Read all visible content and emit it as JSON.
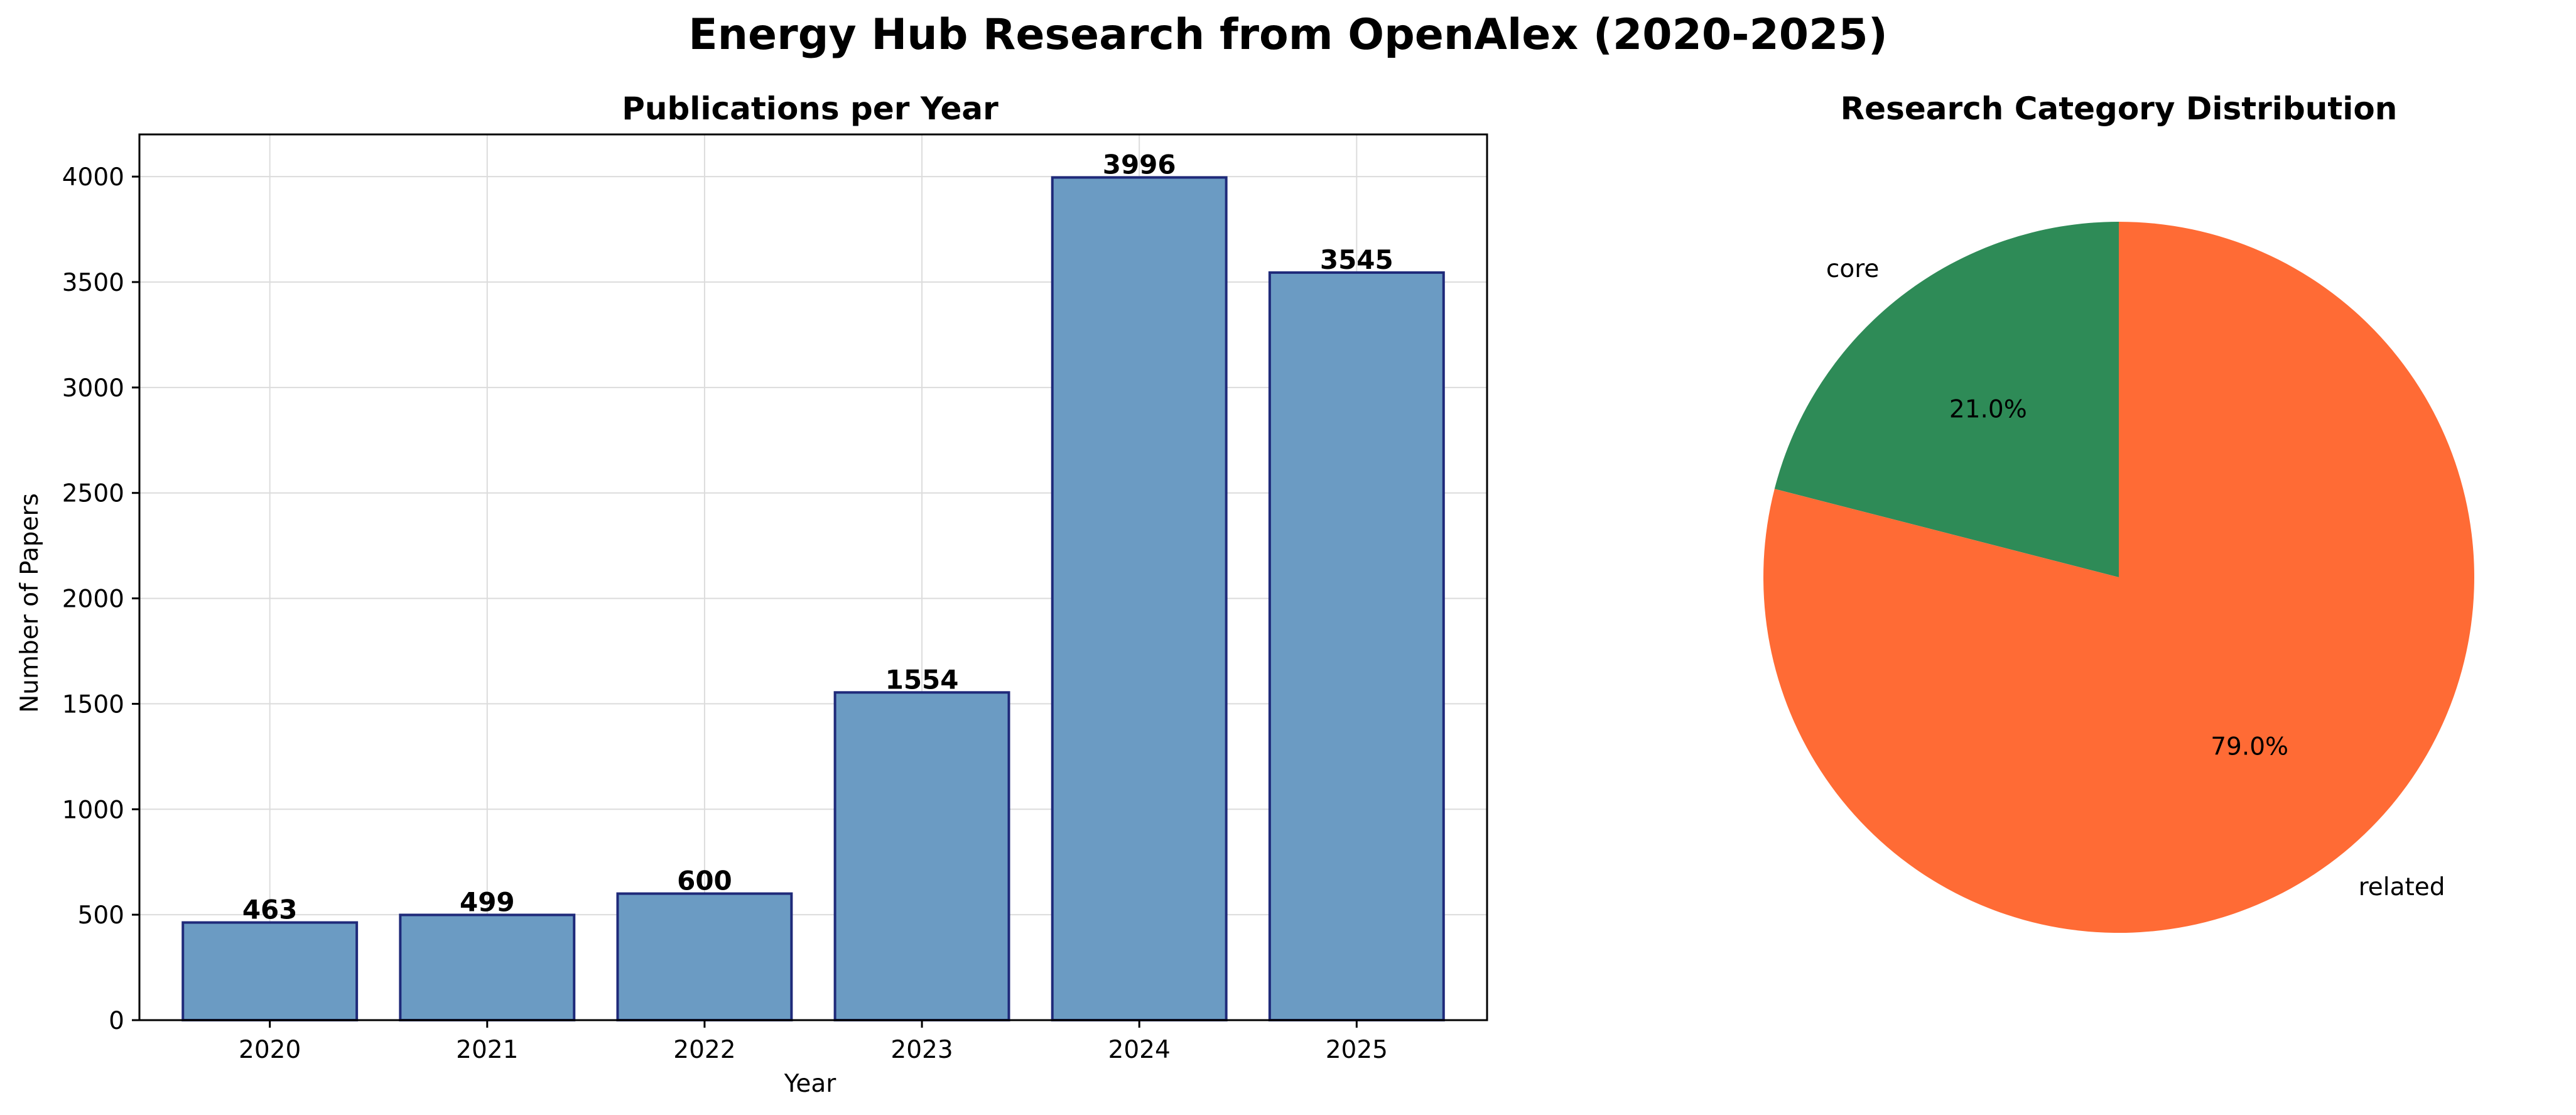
{
  "figure": {
    "title": "Energy Hub Research from OpenAlex (2020-2025)"
  },
  "chart_data": [
    {
      "type": "bar",
      "title": "Publications per Year",
      "xlabel": "Year",
      "ylabel": "Number of Papers",
      "categories": [
        "2020",
        "2021",
        "2022",
        "2023",
        "2024",
        "2025"
      ],
      "values": [
        463,
        499,
        600,
        1554,
        3996,
        3545
      ],
      "ylim": [
        0,
        4200
      ],
      "yticks": [
        0,
        500,
        1000,
        1500,
        2000,
        2500,
        3000,
        3500,
        4000
      ],
      "grid": true,
      "bar_color": "#6b9bc3",
      "edge_color": "#1f2a7a"
    },
    {
      "type": "pie",
      "title": "Research Category Distribution",
      "labels": [
        "core",
        "related"
      ],
      "values": [
        21.0,
        79.0
      ],
      "pct_labels": [
        "21.0%",
        "79.0%"
      ],
      "colors": [
        "#2e8b57",
        "#ff6b35"
      ]
    }
  ]
}
